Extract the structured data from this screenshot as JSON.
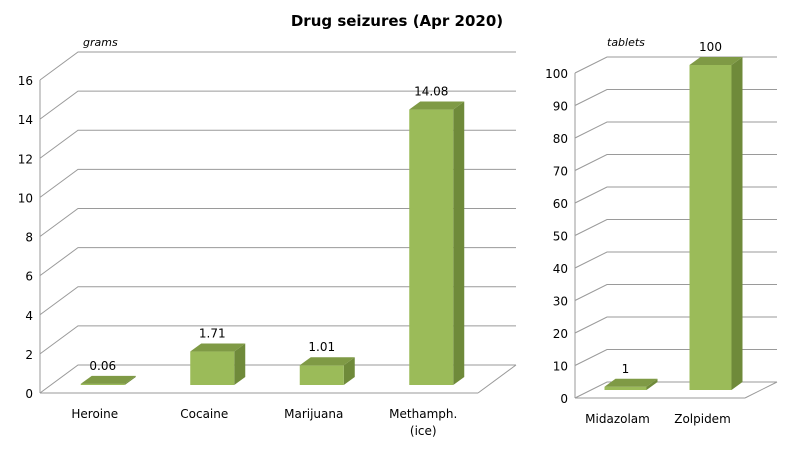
{
  "title": "Drug seizures (Apr 2020)",
  "colors": {
    "bar_front": "#9bbb59",
    "bar_side": "#6f8a3a",
    "bar_top": "#7f9a45",
    "grid": "#9a9a9a",
    "axis_text": "#000000"
  },
  "chart_data": [
    {
      "type": "bar",
      "unit_label": "grams",
      "categories": [
        "Heroine",
        "Cocaine",
        "Marijuana",
        "Methamph. (ice)"
      ],
      "category_lines": [
        [
          "Heroine"
        ],
        [
          "Cocaine"
        ],
        [
          "Marijuana"
        ],
        [
          "Methamph.",
          "(ice)"
        ]
      ],
      "values": [
        0.06,
        1.71,
        1.01,
        14.08
      ],
      "value_labels": [
        "0.06",
        "1.71",
        "1.01",
        "14.08"
      ],
      "ylim": [
        0,
        16
      ],
      "yticks": [
        0,
        2,
        4,
        6,
        8,
        10,
        12,
        14,
        16
      ],
      "grid": true,
      "style": "3d"
    },
    {
      "type": "bar",
      "unit_label": "tablets",
      "categories": [
        "Midazolam",
        "Zolpidem"
      ],
      "category_lines": [
        [
          "Midazolam"
        ],
        [
          "Zolpidem"
        ]
      ],
      "values": [
        1,
        100
      ],
      "value_labels": [
        "1",
        "100"
      ],
      "ylim": [
        0,
        100
      ],
      "yticks": [
        0,
        10,
        20,
        30,
        40,
        50,
        60,
        70,
        80,
        90,
        100
      ],
      "grid": true,
      "style": "3d"
    }
  ]
}
